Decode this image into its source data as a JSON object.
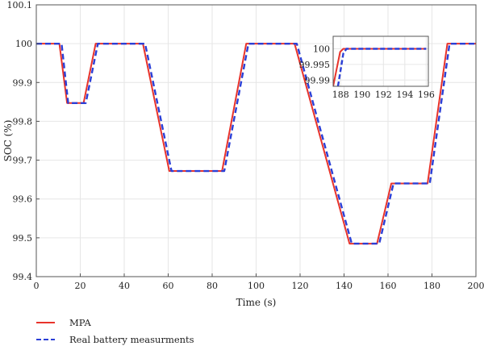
{
  "chart_data": {
    "type": "line",
    "xlabel": "Time (s)",
    "ylabel": "SOC (%)",
    "xlim": [
      0,
      200
    ],
    "ylim": [
      99.4,
      100.1
    ],
    "xticks": [
      0,
      20,
      40,
      60,
      80,
      100,
      120,
      140,
      160,
      180,
      200
    ],
    "yticks": [
      99.4,
      99.5,
      99.6,
      99.7,
      99.8,
      99.9,
      100,
      100.1
    ],
    "xtick_labels": [
      "0",
      "20",
      "40",
      "60",
      "80",
      "100",
      "120",
      "140",
      "160",
      "180",
      "200"
    ],
    "ytick_labels": [
      "99.4",
      "99.5",
      "99.6",
      "99.7",
      "99.8",
      "99.9",
      "100",
      "100.1"
    ],
    "grid": true,
    "legend_position": "below-left",
    "series": [
      {
        "name": "MPA",
        "color": "#e8332b",
        "style": "solid",
        "x": [
          0,
          10.5,
          14,
          21.5,
          27,
          48.5,
          60.5,
          84.5,
          95.5,
          117.5,
          142.5,
          155,
          161.5,
          178,
          187,
          200
        ],
        "y": [
          100,
          100,
          99.847,
          99.847,
          100,
          100,
          99.672,
          99.672,
          100,
          100,
          99.485,
          99.485,
          99.64,
          99.64,
          100,
          100
        ]
      },
      {
        "name": "Real battery measurments",
        "color": "#2b3fd6",
        "style": "dashed",
        "x": [
          0,
          11.5,
          14.5,
          22.5,
          28,
          49.5,
          61.5,
          85.5,
          96.5,
          118.5,
          143.5,
          156,
          162.5,
          179,
          188,
          200
        ],
        "y": [
          100,
          100,
          99.847,
          99.847,
          100,
          100,
          99.672,
          99.672,
          100,
          100,
          99.485,
          99.485,
          99.64,
          99.64,
          100,
          100
        ]
      }
    ],
    "inset": {
      "xlim": [
        187.3,
        196.2
      ],
      "ylim": [
        99.988,
        100.004
      ],
      "xticks": [
        188,
        190,
        192,
        194,
        196
      ],
      "yticks": [
        99.99,
        99.995,
        100
      ],
      "xtick_labels": [
        "188",
        "190",
        "192",
        "194",
        "196"
      ],
      "ytick_labels": [
        "99.99",
        "99.995",
        "100"
      ],
      "series": [
        {
          "name": "MPA",
          "x": [
            187.3,
            187.95,
            188.25,
            196
          ],
          "y": [
            99.988,
            99.999,
            100,
            100
          ]
        },
        {
          "name": "Real battery measurments",
          "x": [
            187.75,
            188.25,
            188.55,
            196
          ],
          "y": [
            99.988,
            99.9985,
            100,
            100
          ]
        }
      ]
    }
  }
}
